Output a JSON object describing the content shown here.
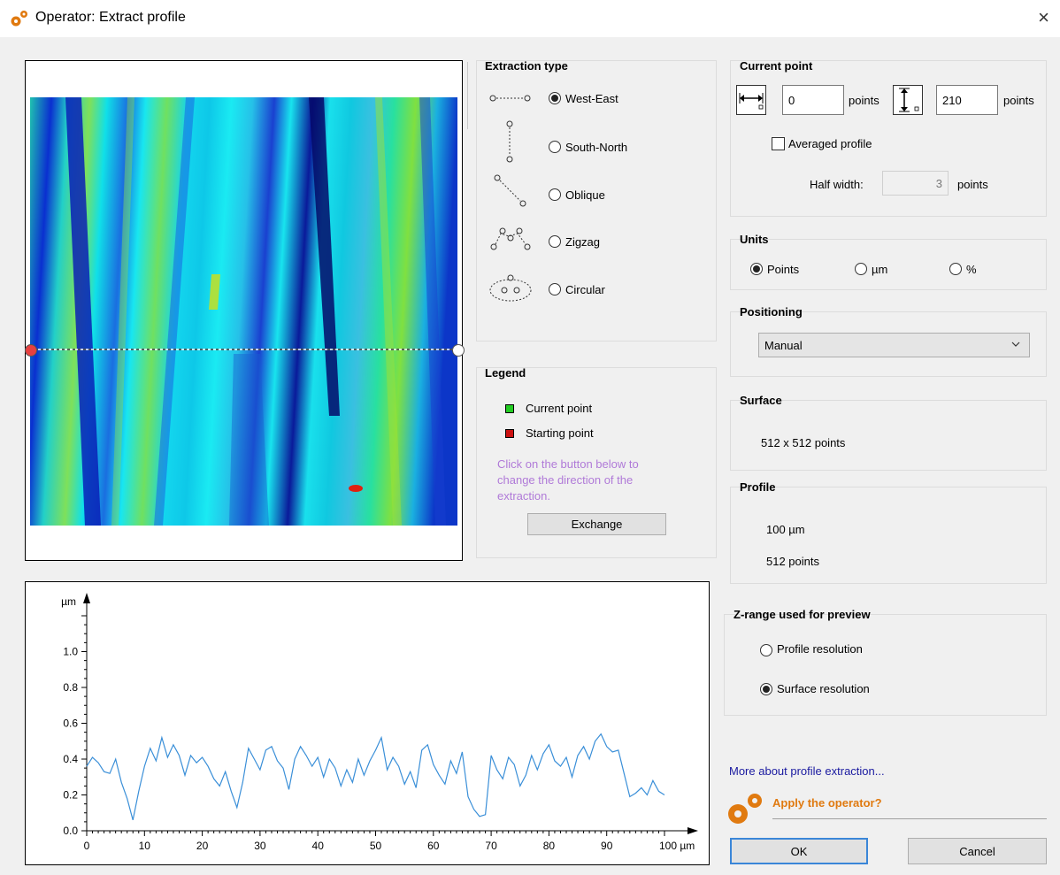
{
  "window": {
    "title": "Operator: Extract profile",
    "close_glyph": "×"
  },
  "extraction_type": {
    "title": "Extraction type",
    "options": [
      {
        "label": "West-East",
        "icon": "west-east-icon",
        "checked": true
      },
      {
        "label": "South-North",
        "icon": "south-north-icon",
        "checked": false
      },
      {
        "label": "Oblique",
        "icon": "oblique-icon",
        "checked": false
      },
      {
        "label": "Zigzag",
        "icon": "zigzag-icon",
        "checked": false
      },
      {
        "label": "Circular",
        "icon": "circular-icon",
        "checked": false
      }
    ]
  },
  "legend": {
    "title": "Legend",
    "items": [
      {
        "label": "Current point",
        "color": "#22cc22"
      },
      {
        "label": "Starting point",
        "color": "#cc1111"
      }
    ],
    "hint": "Click on the button below to change the direction of the extraction.",
    "exchange_label": "Exchange"
  },
  "current_point": {
    "title": "Current point",
    "x_value": "0",
    "x_unit": "points",
    "y_value": "210",
    "y_unit": "points",
    "averaged_label": "Averaged profile",
    "averaged_checked": false,
    "half_width_label": "Half width:",
    "half_width_value": "3",
    "half_width_unit": "points"
  },
  "units": {
    "title": "Units",
    "options": [
      {
        "label": "Points",
        "checked": true
      },
      {
        "label": "µm",
        "checked": false
      },
      {
        "label": "%",
        "checked": false
      }
    ]
  },
  "positioning": {
    "title": "Positioning",
    "value": "Manual"
  },
  "surface": {
    "title": "Surface",
    "size": "512 x 512 points"
  },
  "profile": {
    "title": "Profile",
    "length": "100 µm",
    "points": "512 points"
  },
  "zrange": {
    "title": "Z-range used for preview",
    "options": [
      {
        "label": "Profile resolution",
        "checked": false
      },
      {
        "label": "Surface resolution",
        "checked": true
      }
    ]
  },
  "footer": {
    "more_link": "More about profile extraction...",
    "apply_label": "Apply the operator?",
    "ok_label": "OK",
    "cancel_label": "Cancel"
  },
  "colors": {
    "accent_orange": "#e07a10",
    "profile_line": "#3a8fd8"
  },
  "chart_data": {
    "type": "line",
    "xlabel": "µm",
    "ylabel": "µm",
    "xlim": [
      0,
      100
    ],
    "ylim": [
      0,
      1.2
    ],
    "x_ticks": [
      0,
      10,
      20,
      30,
      40,
      50,
      60,
      70,
      80,
      90,
      100
    ],
    "x_tick_labels": [
      "0",
      "10",
      "20",
      "30",
      "40",
      "50",
      "60",
      "70",
      "80",
      "90",
      "100 µm"
    ],
    "y_ticks": [
      0,
      0.2,
      0.4,
      0.6,
      0.8,
      1.0
    ],
    "y_tick_labels": [
      "0.0",
      "0.2",
      "0.4",
      "0.6",
      "0.8",
      "1.0"
    ],
    "series": [
      {
        "x": [
          0,
          1,
          2,
          3,
          4,
          5,
          6,
          7,
          8,
          9,
          10,
          11,
          12,
          13,
          14,
          15,
          16,
          17,
          18,
          19,
          20,
          21,
          22,
          23,
          24,
          25,
          26,
          27,
          28,
          29,
          30,
          31,
          32,
          33,
          34,
          35,
          36,
          37,
          38,
          39,
          40,
          41,
          42,
          43,
          44,
          45,
          46,
          47,
          48,
          49,
          50,
          51,
          52,
          53,
          54,
          55,
          56,
          57,
          58,
          59,
          60,
          61,
          62,
          63,
          64,
          65,
          66,
          67,
          68,
          69,
          70,
          71,
          72,
          73,
          74,
          75,
          76,
          77,
          78,
          79,
          80,
          81,
          82,
          83,
          84,
          85,
          86,
          87,
          88,
          89,
          90,
          91,
          92,
          93,
          94,
          95,
          96,
          97,
          98,
          99,
          100
        ],
        "y": [
          0.36,
          0.41,
          0.38,
          0.33,
          0.32,
          0.4,
          0.27,
          0.18,
          0.06,
          0.22,
          0.36,
          0.46,
          0.39,
          0.52,
          0.41,
          0.48,
          0.42,
          0.31,
          0.42,
          0.38,
          0.41,
          0.36,
          0.29,
          0.25,
          0.33,
          0.22,
          0.13,
          0.27,
          0.46,
          0.4,
          0.34,
          0.45,
          0.47,
          0.39,
          0.35,
          0.23,
          0.4,
          0.47,
          0.42,
          0.36,
          0.41,
          0.3,
          0.4,
          0.35,
          0.25,
          0.34,
          0.27,
          0.4,
          0.31,
          0.39,
          0.45,
          0.52,
          0.34,
          0.41,
          0.36,
          0.26,
          0.33,
          0.24,
          0.45,
          0.48,
          0.37,
          0.31,
          0.26,
          0.39,
          0.32,
          0.44,
          0.19,
          0.12,
          0.08,
          0.09,
          0.42,
          0.34,
          0.29,
          0.41,
          0.37,
          0.25,
          0.31,
          0.42,
          0.34,
          0.43,
          0.48,
          0.39,
          0.36,
          0.41,
          0.3,
          0.42,
          0.47,
          0.4,
          0.5,
          0.54,
          0.47,
          0.44,
          0.45,
          0.32,
          0.19,
          0.21,
          0.24,
          0.2,
          0.28,
          0.22,
          0.2
        ]
      }
    ]
  }
}
